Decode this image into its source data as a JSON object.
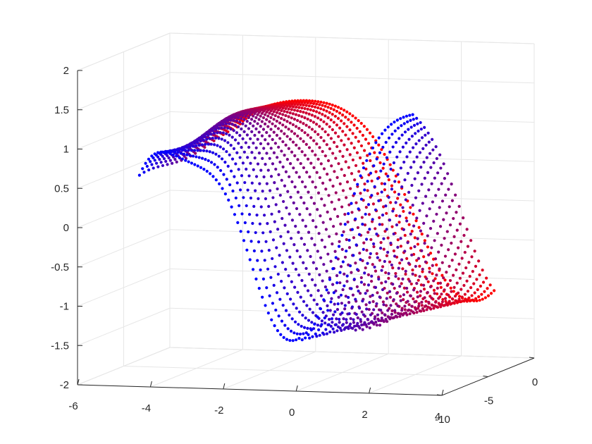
{
  "chart_data": {
    "type": "scatter",
    "title": "",
    "xlabel": "",
    "ylabel": "",
    "zlabel": "",
    "grid": true,
    "projection": "3d",
    "xlim": [
      -6,
      4
    ],
    "ylim": [
      -10,
      0
    ],
    "zlim": [
      -2,
      2
    ],
    "x_ticks": [
      "-6",
      "-4",
      "-2",
      "0",
      "2",
      "4"
    ],
    "y_ticks": [
      "-10",
      "-5",
      "0"
    ],
    "z_ticks": [
      "-2",
      "-1.5",
      "-1",
      "-0.5",
      "0",
      "0.5",
      "1",
      "1.5",
      "2"
    ],
    "colormap": {
      "from": "#0000ff",
      "to": "#ff0000",
      "by": "y"
    },
    "surface": {
      "description_free": true,
      "x_range": [
        -4.3,
        3.2
      ],
      "y_range": [
        -10,
        0
      ],
      "rows": 22,
      "points_per_row": 90,
      "minima": [
        {
          "x": 0.1,
          "y": -10,
          "z": -1.35
        },
        {
          "x": 2.2,
          "y": 0,
          "z": -1.28
        }
      ],
      "left_peak_z": 1.45,
      "right_peak_z": 1.6
    }
  }
}
